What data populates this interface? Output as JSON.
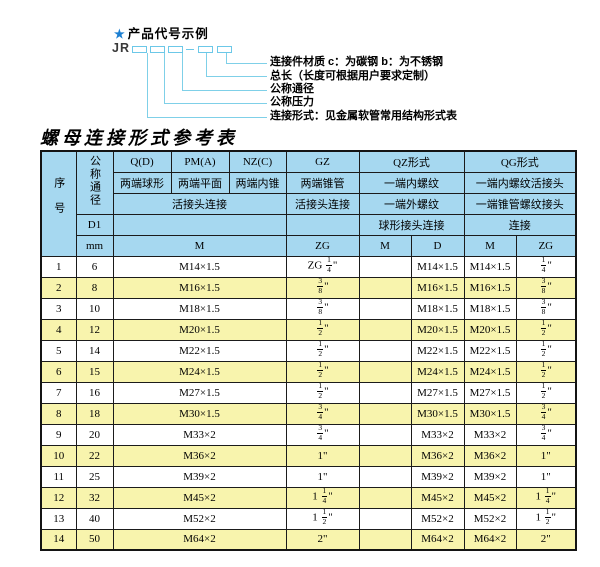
{
  "diagram": {
    "star": "★",
    "title": "产品代号示例",
    "prefix": "JR",
    "labels": [
      "连接件材质  c：为碳钢  b：为不锈钢",
      "总长（长度可根据用户要求定制）",
      "公称通径",
      "公称压力",
      "连接形式：见金属软管常用结构形式表"
    ]
  },
  "table": {
    "title": "螺母连接形式参考表",
    "header": {
      "seq": "序号",
      "dn": "公称通径",
      "d1": "D1",
      "mm": "mm",
      "q": "Q(D)",
      "pm": "PM(A)",
      "nz": "NZ(C)",
      "gz": "GZ",
      "qz": "QZ形式",
      "qg": "QG形式",
      "q_desc": "两端球形",
      "pm_desc": "两端平面",
      "nz_desc": "两端内锥",
      "gz_desc": "两端锥管",
      "qz_desc1": "一端内螺纹",
      "qg_desc1": "一端内螺纹活接头",
      "union_conn": "活接头连接",
      "gz_conn": "活接头连接",
      "qz_desc2": "一端外螺纹",
      "qg_desc2": "一端锥管螺纹接头",
      "qz_conn": "球形接头连接",
      "qg_conn": "连接",
      "unit_m1": "M",
      "unit_zg1": "ZG",
      "unit_qz_m": "M",
      "unit_qz_d": "D",
      "unit_qg_m": "M",
      "unit_qg_zg": "ZG"
    },
    "rows": [
      {
        "seq": "1",
        "dn": "6",
        "m": "M14×1.5",
        "zg": "ZG 1/4\"",
        "qz_m": "",
        "qz_d": "M14×1.5",
        "qg_m": "M14×1.5",
        "qg_zg": "1/4\""
      },
      {
        "seq": "2",
        "dn": "8",
        "m": "M16×1.5",
        "zg": "3/8\"",
        "qz_m": "",
        "qz_d": "M16×1.5",
        "qg_m": "M16×1.5",
        "qg_zg": "3/8\""
      },
      {
        "seq": "3",
        "dn": "10",
        "m": "M18×1.5",
        "zg": "3/8\"",
        "qz_m": "",
        "qz_d": "M18×1.5",
        "qg_m": "M18×1.5",
        "qg_zg": "3/8\""
      },
      {
        "seq": "4",
        "dn": "12",
        "m": "M20×1.5",
        "zg": "1/2\"",
        "qz_m": "",
        "qz_d": "M20×1.5",
        "qg_m": "M20×1.5",
        "qg_zg": "1/2\""
      },
      {
        "seq": "5",
        "dn": "14",
        "m": "M22×1.5",
        "zg": "1/2\"",
        "qz_m": "",
        "qz_d": "M22×1.5",
        "qg_m": "M22×1.5",
        "qg_zg": "1/2\""
      },
      {
        "seq": "6",
        "dn": "15",
        "m": "M24×1.5",
        "zg": "1/2\"",
        "qz_m": "",
        "qz_d": "M24×1.5",
        "qg_m": "M24×1.5",
        "qg_zg": "1/2\""
      },
      {
        "seq": "7",
        "dn": "16",
        "m": "M27×1.5",
        "zg": "1/2\"",
        "qz_m": "",
        "qz_d": "M27×1.5",
        "qg_m": "M27×1.5",
        "qg_zg": "1/2\""
      },
      {
        "seq": "8",
        "dn": "18",
        "m": "M30×1.5",
        "zg": "3/4\"",
        "qz_m": "",
        "qz_d": "M30×1.5",
        "qg_m": "M30×1.5",
        "qg_zg": "3/4\""
      },
      {
        "seq": "9",
        "dn": "20",
        "m": "M33×2",
        "zg": "3/4\"",
        "qz_m": "",
        "qz_d": "M33×2",
        "qg_m": "M33×2",
        "qg_zg": "3/4\""
      },
      {
        "seq": "10",
        "dn": "22",
        "m": "M36×2",
        "zg": "1\"",
        "qz_m": "",
        "qz_d": "M36×2",
        "qg_m": "M36×2",
        "qg_zg": "1\""
      },
      {
        "seq": "11",
        "dn": "25",
        "m": "M39×2",
        "zg": "1\"",
        "qz_m": "",
        "qz_d": "M39×2",
        "qg_m": "M39×2",
        "qg_zg": "1\""
      },
      {
        "seq": "12",
        "dn": "32",
        "m": "M45×2",
        "zg": "1 1/4\"",
        "qz_m": "",
        "qz_d": "M45×2",
        "qg_m": "M45×2",
        "qg_zg": "1 1/4\""
      },
      {
        "seq": "13",
        "dn": "40",
        "m": "M52×2",
        "zg": "1 1/2\"",
        "qz_m": "",
        "qz_d": "M52×2",
        "qg_m": "M52×2",
        "qg_zg": "1 1/2\""
      },
      {
        "seq": "14",
        "dn": "50",
        "m": "M64×2",
        "zg": "2\"",
        "qz_m": "",
        "qz_d": "M64×2",
        "qg_m": "M64×2",
        "qg_zg": "2\""
      }
    ]
  },
  "colors": {
    "header_blue": "#a6d8f0",
    "row_yellow": "#f8f4ad",
    "line_cyan": "#7fd0e8",
    "box_cyan": "#6cc8e8",
    "star_blue": "#1c7fd2",
    "border": "#1b1b1b"
  }
}
